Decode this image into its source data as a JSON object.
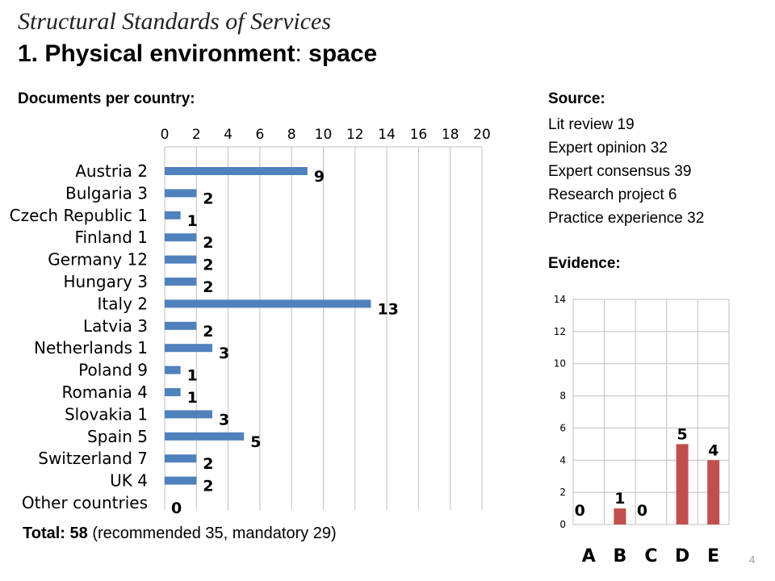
{
  "header": {
    "subtitle_italic": "Structural Standards of Services",
    "title_prefix": "1. Physical environment",
    "title_colon": ":",
    "title_suffix": "space"
  },
  "documents_label": "Documents per country:",
  "source": {
    "heading": "Source:",
    "items": [
      "Lit review 19",
      "Expert opinion 32",
      "Expert consensus 39",
      "Research project 6",
      "Practice experience 32"
    ]
  },
  "evidence_label": "Evidence:",
  "total": {
    "label": "Total:",
    "value": "58",
    "detail": "(recommended 35, mandatory 29)"
  },
  "page_number": "4",
  "colors": {
    "bar_blue": "#4f81bd",
    "bar_red": "#c0504d",
    "grid": "#bfbfbf"
  },
  "chart_data": [
    {
      "type": "bar",
      "orientation": "horizontal",
      "title": "",
      "categories": [
        "Austria 2",
        "Bulgaria 3",
        "Czech Republic 1",
        "Finland 1",
        "Germany 12",
        "Hungary 3",
        "Italy 2",
        "Latvia 3",
        "Netherlands 1",
        "Poland 9",
        "Romania 4",
        "Slovakia 1",
        "Spain 5",
        "Switzerland 7",
        "UK 4",
        "Other countries"
      ],
      "values": [
        9,
        2,
        1,
        2,
        2,
        2,
        13,
        2,
        3,
        1,
        1,
        3,
        5,
        2,
        2,
        0
      ],
      "xlim": [
        0,
        20
      ],
      "xticks": [
        "0",
        "2",
        "4",
        "6",
        "8",
        "10",
        "12",
        "14",
        "16",
        "18",
        "20"
      ],
      "axis_position": "top",
      "grid": true,
      "data_labels": true
    },
    {
      "type": "bar",
      "orientation": "vertical",
      "title": "",
      "categories": [
        "A",
        "B",
        "C",
        "D",
        "E"
      ],
      "values": [
        0,
        1,
        0,
        5,
        4
      ],
      "ylim": [
        0,
        14
      ],
      "yticks": [
        "0",
        "2",
        "4",
        "6",
        "8",
        "10",
        "12",
        "14"
      ],
      "grid": true,
      "data_labels": true
    }
  ]
}
